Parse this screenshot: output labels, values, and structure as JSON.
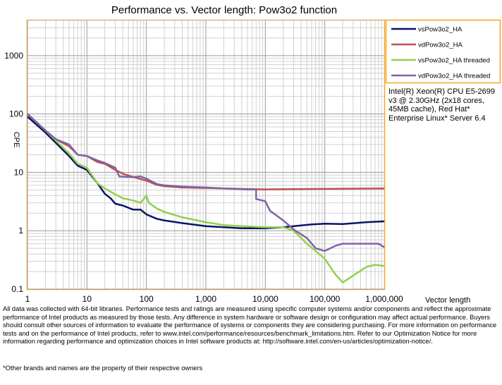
{
  "chart_data": {
    "type": "line",
    "title": "Performance vs. Vector length: Pow3o2 function",
    "xlabel": "Vector length",
    "ylabel": "CPE",
    "xscale": "log",
    "yscale": "log",
    "xlim": [
      1,
      1000000
    ],
    "ylim": [
      0.1,
      4000
    ],
    "grid": true,
    "legend_position": "right",
    "x_ticks": [
      1,
      10,
      100,
      1000,
      10000,
      100000,
      1000000
    ],
    "x_tick_labels": [
      "1",
      "10",
      "100",
      "1,000",
      "10,000",
      "100,000",
      "1,000,000"
    ],
    "y_ticks": [
      0.1,
      1,
      10,
      100,
      1000
    ],
    "y_tick_labels": [
      "0.1",
      "1",
      "10",
      "100",
      "1000"
    ],
    "series": [
      {
        "name": "vsPow3o2_HA",
        "color": "#0b1464",
        "points": [
          [
            1,
            90
          ],
          [
            2,
            48
          ],
          [
            3,
            32
          ],
          [
            5,
            19
          ],
          [
            7,
            13
          ],
          [
            10,
            11
          ],
          [
            15,
            6.5
          ],
          [
            20,
            4.3
          ],
          [
            25,
            3.6
          ],
          [
            30,
            2.9
          ],
          [
            40,
            2.7
          ],
          [
            60,
            2.3
          ],
          [
            80,
            2.3
          ],
          [
            100,
            1.9
          ],
          [
            150,
            1.6
          ],
          [
            200,
            1.5
          ],
          [
            400,
            1.35
          ],
          [
            1000,
            1.2
          ],
          [
            2000,
            1.15
          ],
          [
            4000,
            1.1
          ],
          [
            10000,
            1.1
          ],
          [
            20000,
            1.15
          ],
          [
            30000,
            1.2
          ],
          [
            60000,
            1.28
          ],
          [
            100000,
            1.32
          ],
          [
            200000,
            1.3
          ],
          [
            500000,
            1.4
          ],
          [
            1000000,
            1.45
          ]
        ]
      },
      {
        "name": "vdPow3o2_HA",
        "color": "#c0504d",
        "points": [
          [
            1,
            100
          ],
          [
            2,
            52
          ],
          [
            3,
            37
          ],
          [
            5,
            28
          ],
          [
            7,
            20
          ],
          [
            10,
            19
          ],
          [
            15,
            15
          ],
          [
            20,
            14
          ],
          [
            30,
            11
          ],
          [
            40,
            9.5
          ],
          [
            60,
            8.3
          ],
          [
            100,
            7.2
          ],
          [
            150,
            6.1
          ],
          [
            200,
            5.8
          ],
          [
            400,
            5.5
          ],
          [
            1000,
            5.4
          ],
          [
            4000,
            5.2
          ],
          [
            10000,
            5.1
          ],
          [
            100000,
            5.2
          ],
          [
            1000000,
            5.3
          ]
        ]
      },
      {
        "name": "vsPow3o2_HA threaded",
        "color": "#92d050",
        "points": [
          [
            1,
            100
          ],
          [
            2,
            52
          ],
          [
            3,
            35
          ],
          [
            5,
            21
          ],
          [
            7,
            14
          ],
          [
            10,
            12
          ],
          [
            15,
            6.5
          ],
          [
            20,
            5.3
          ],
          [
            30,
            4.2
          ],
          [
            40,
            3.6
          ],
          [
            60,
            3.3
          ],
          [
            80,
            3.0
          ],
          [
            100,
            4.0
          ],
          [
            110,
            3.0
          ],
          [
            150,
            2.4
          ],
          [
            200,
            2.1
          ],
          [
            400,
            1.7
          ],
          [
            1000,
            1.4
          ],
          [
            2000,
            1.25
          ],
          [
            4000,
            1.2
          ],
          [
            10000,
            1.15
          ],
          [
            20000,
            1.15
          ],
          [
            30000,
            1.0
          ],
          [
            50000,
            0.6
          ],
          [
            70000,
            0.45
          ],
          [
            100000,
            0.33
          ],
          [
            150000,
            0.18
          ],
          [
            200000,
            0.13
          ],
          [
            300000,
            0.17
          ],
          [
            500000,
            0.24
          ],
          [
            700000,
            0.26
          ],
          [
            1000000,
            0.25
          ]
        ]
      },
      {
        "name": "vdPow3o2_HA threaded",
        "color": "#8064a2",
        "points": [
          [
            1,
            100
          ],
          [
            2,
            52
          ],
          [
            3,
            37
          ],
          [
            5,
            30
          ],
          [
            7,
            20
          ],
          [
            10,
            19
          ],
          [
            15,
            16
          ],
          [
            20,
            14.5
          ],
          [
            30,
            12
          ],
          [
            35,
            8.5
          ],
          [
            60,
            8.3
          ],
          [
            80,
            8.5
          ],
          [
            100,
            7.8
          ],
          [
            150,
            6.3
          ],
          [
            200,
            6.0
          ],
          [
            400,
            5.7
          ],
          [
            1000,
            5.5
          ],
          [
            2000,
            5.3
          ],
          [
            5000,
            5.1
          ],
          [
            7000,
            5.1
          ],
          [
            7000,
            3.5
          ],
          [
            10000,
            3.2
          ],
          [
            12000,
            2.2
          ],
          [
            20000,
            1.5
          ],
          [
            30000,
            1.05
          ],
          [
            50000,
            0.75
          ],
          [
            70000,
            0.5
          ],
          [
            100000,
            0.45
          ],
          [
            150000,
            0.55
          ],
          [
            200000,
            0.6
          ],
          [
            500000,
            0.6
          ],
          [
            800000,
            0.6
          ],
          [
            1000000,
            0.52
          ]
        ]
      }
    ]
  },
  "notes": {
    "cpu_config": "Intel(R) Xeon(R) CPU E5-2699 v3 @ 2.30GHz (2x18 cores, 45MB cache), Red Hat* Enterprise Linux* Server 6.4",
    "disclaimer": "All data was collected with 64-bit libraries. Performance tests and ratings are measured using specific computer systems and/or components and reflect the approximate performance of Intel products as measured by those tests. Any difference in system hardware or software design or configuration may affect actual performance. Buyers should consult other sources of information to evaluate the performance of systems or components they are considering purchasing. For more information on performance tests and on the performance of Intel products, refer to www.intel.com/performance/resources/benchmark_limitations.htm. Refer to our Optimization Notice for more information regarding performance and optimization choices in Intel software products at: http://software.intel.com/en-us/articles/optimization-notice/.",
    "trademark": "*Other brands and names are the property of their respective owners"
  }
}
